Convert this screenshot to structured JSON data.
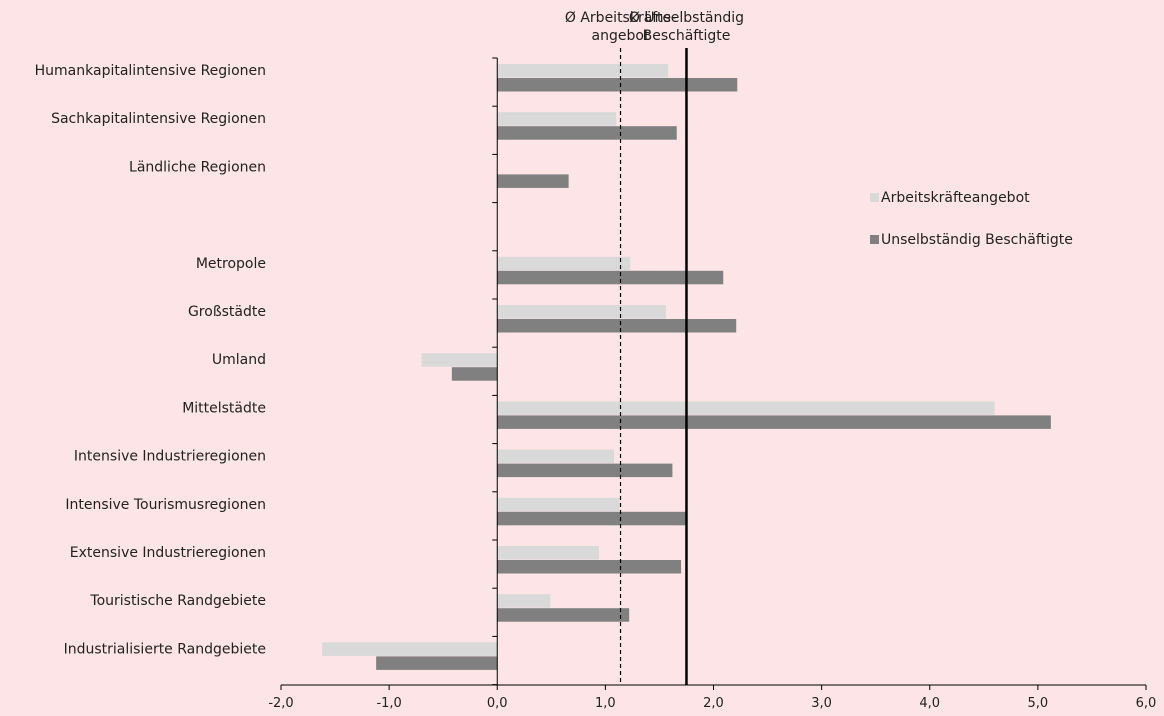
{
  "chart_data": {
    "type": "bar",
    "orientation": "horizontal",
    "categories": [
      "Humankapitalintensive Regionen",
      "Sachkapitalintensive Regionen",
      "Ländliche Regionen",
      "",
      "Metropole",
      "Großstädte",
      "Umland",
      "Mittelstädte",
      "Intensive Industrieregionen",
      "Intensive Tourismusregionen",
      "Extensive Industrieregionen",
      "Touristische Randgebiete",
      "Industrialisierte Randgebiete"
    ],
    "series": [
      {
        "name": "Arbeitskräfteangebot",
        "color": "#d9d9d9",
        "values": [
          1.58,
          1.1,
          null,
          null,
          1.23,
          1.56,
          -0.7,
          4.6,
          1.08,
          1.13,
          0.94,
          0.49,
          -1.62
        ]
      },
      {
        "name": "Unselbständig Beschäftigte",
        "color": "#808080",
        "values": [
          2.22,
          1.66,
          0.66,
          null,
          2.09,
          2.21,
          -0.42,
          5.12,
          1.62,
          1.75,
          1.7,
          1.22,
          -1.12
        ]
      }
    ],
    "xlim": [
      -2.0,
      6.0
    ],
    "xticks": [
      "-2,0",
      "-1,0",
      "0,0",
      "1,0",
      "2,0",
      "3,0",
      "4,0",
      "5,0",
      "6,0"
    ],
    "xtick_values": [
      -2,
      -1,
      0,
      1,
      2,
      3,
      4,
      5,
      6
    ],
    "reference_lines": [
      {
        "value": 1.14,
        "style": "dashed",
        "label_lines": [
          "Ø Arbeitskräfte-",
          "angebot"
        ]
      },
      {
        "value": 1.75,
        "style": "solid",
        "label_lines": [
          "Ø Unselbständig",
          "Beschäftigte"
        ]
      }
    ],
    "legend_position": "right",
    "title": "",
    "xlabel": "",
    "ylabel": ""
  }
}
